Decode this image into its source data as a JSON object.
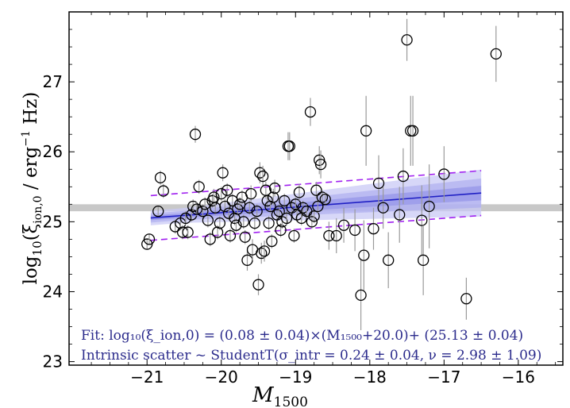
{
  "chart_data": {
    "type": "scatter",
    "xlabel": "M_1500",
    "ylabel": "log10(ξ_ion,0 / erg^-1 Hz)",
    "xlim": [
      -22.05,
      -15.4
    ],
    "ylim": [
      22.95,
      28.0
    ],
    "x_ticks": [
      -21,
      -20,
      -19,
      -18,
      -17,
      -16
    ],
    "x_tick_labels": [
      "−21",
      "−20",
      "−19",
      "−18",
      "−17",
      "−16"
    ],
    "y_ticks": [
      23,
      24,
      25,
      26,
      27
    ],
    "y_tick_labels": [
      "23",
      "24",
      "25",
      "26",
      "27"
    ],
    "reference_band": {
      "y_center": 25.2,
      "half_width": 0.05,
      "color": "#c8c8c8"
    },
    "fit": {
      "slope": 0.08,
      "intercept": 25.13,
      "x0": -20.0,
      "x_range": [
        -20.95,
        -16.5
      ],
      "line_color": "#1f1fc4",
      "band_colors": [
        "#c9c9f5",
        "#a8a8ee",
        "#8888e6"
      ],
      "scatter_color": "#a020f0",
      "scatter_offset": 0.32
    },
    "points": [
      [
        -21.0,
        24.68,
        0.08
      ],
      [
        -20.97,
        24.75,
        0.08
      ],
      [
        -20.85,
        25.15,
        0.08
      ],
      [
        -20.82,
        25.63,
        0.1
      ],
      [
        -20.78,
        25.44,
        0.1
      ],
      [
        -20.62,
        24.93,
        0.1
      ],
      [
        -20.55,
        24.98,
        0.1
      ],
      [
        -20.52,
        24.85,
        0.1
      ],
      [
        -20.48,
        25.05,
        0.1
      ],
      [
        -20.45,
        24.85,
        0.1
      ],
      [
        -20.4,
        25.1,
        0.1
      ],
      [
        -20.38,
        25.22,
        0.1
      ],
      [
        -20.35,
        26.25,
        0.12
      ],
      [
        -20.33,
        25.18,
        0.1
      ],
      [
        -20.3,
        25.5,
        0.1
      ],
      [
        -20.25,
        25.15,
        0.1
      ],
      [
        -20.22,
        25.25,
        0.1
      ],
      [
        -20.18,
        25.02,
        0.1
      ],
      [
        -20.15,
        24.75,
        0.1
      ],
      [
        -20.12,
        25.3,
        0.1
      ],
      [
        -20.1,
        25.35,
        0.12
      ],
      [
        -20.08,
        25.2,
        0.1
      ],
      [
        -20.05,
        24.85,
        0.1
      ],
      [
        -20.02,
        24.98,
        0.1
      ],
      [
        -20.0,
        25.4,
        0.1
      ],
      [
        -19.98,
        25.7,
        0.12
      ],
      [
        -19.95,
        25.22,
        0.1
      ],
      [
        -19.92,
        25.45,
        0.1
      ],
      [
        -19.9,
        25.12,
        0.1
      ],
      [
        -19.88,
        24.8,
        0.1
      ],
      [
        -19.85,
        25.3,
        0.1
      ],
      [
        -19.82,
        25.05,
        0.1
      ],
      [
        -19.8,
        24.95,
        0.1
      ],
      [
        -19.78,
        25.18,
        0.1
      ],
      [
        -19.75,
        25.25,
        0.1
      ],
      [
        -19.72,
        25.35,
        0.1
      ],
      [
        -19.7,
        25.0,
        0.1
      ],
      [
        -19.68,
        24.78,
        0.1
      ],
      [
        -19.65,
        24.45,
        0.15
      ],
      [
        -19.62,
        25.2,
        0.1
      ],
      [
        -19.6,
        25.4,
        0.12
      ],
      [
        -19.58,
        24.6,
        0.15
      ],
      [
        -19.55,
        24.98,
        0.1
      ],
      [
        -19.52,
        25.15,
        0.1
      ],
      [
        -19.5,
        24.1,
        0.15
      ],
      [
        -19.48,
        25.7,
        0.15
      ],
      [
        -19.46,
        24.55,
        0.15
      ],
      [
        -19.44,
        25.65,
        0.15
      ],
      [
        -19.42,
        24.58,
        0.15
      ],
      [
        -19.4,
        25.45,
        0.12
      ],
      [
        -19.38,
        25.3,
        0.1
      ],
      [
        -19.36,
        24.98,
        0.1
      ],
      [
        -19.34,
        25.22,
        0.1
      ],
      [
        -19.32,
        24.72,
        0.1
      ],
      [
        -19.3,
        25.35,
        0.12
      ],
      [
        -19.28,
        25.48,
        0.12
      ],
      [
        -19.25,
        25.1,
        0.1
      ],
      [
        -19.22,
        25.15,
        0.1
      ],
      [
        -19.2,
        24.88,
        0.1
      ],
      [
        -19.18,
        25.0,
        0.1
      ],
      [
        -19.15,
        25.3,
        0.1
      ],
      [
        -19.12,
        25.05,
        0.1
      ],
      [
        -19.1,
        26.08,
        0.2
      ],
      [
        -19.08,
        26.08,
        0.2
      ],
      [
        -19.05,
        25.2,
        0.1
      ],
      [
        -19.02,
        24.8,
        0.1
      ],
      [
        -19.0,
        25.25,
        0.1
      ],
      [
        -18.98,
        25.1,
        0.1
      ],
      [
        -18.95,
        25.42,
        0.12
      ],
      [
        -18.92,
        25.05,
        0.1
      ],
      [
        -18.9,
        25.2,
        0.1
      ],
      [
        -18.85,
        25.15,
        0.1
      ],
      [
        -18.8,
        26.57,
        0.2
      ],
      [
        -18.78,
        25.0,
        0.1
      ],
      [
        -18.75,
        25.08,
        0.1
      ],
      [
        -18.72,
        25.45,
        0.12
      ],
      [
        -18.7,
        25.22,
        0.1
      ],
      [
        -18.68,
        25.88,
        0.2
      ],
      [
        -18.66,
        25.82,
        0.2
      ],
      [
        -18.64,
        25.35,
        0.1
      ],
      [
        -18.6,
        25.32,
        0.1
      ],
      [
        -18.55,
        24.8,
        0.2
      ],
      [
        -18.45,
        24.8,
        0.25
      ],
      [
        -18.35,
        24.95,
        0.25
      ],
      [
        -18.2,
        24.88,
        0.3
      ],
      [
        -18.12,
        23.95,
        0.5
      ],
      [
        -18.08,
        24.52,
        0.5
      ],
      [
        -18.05,
        26.3,
        0.5
      ],
      [
        -17.95,
        24.9,
        0.3
      ],
      [
        -17.88,
        25.55,
        0.4
      ],
      [
        -17.82,
        25.2,
        0.3
      ],
      [
        -17.75,
        24.45,
        0.4
      ],
      [
        -17.6,
        25.1,
        0.4
      ],
      [
        -17.55,
        25.65,
        0.4
      ],
      [
        -17.5,
        27.6,
        0.3
      ],
      [
        -17.45,
        26.3,
        0.5
      ],
      [
        -17.42,
        26.3,
        0.5
      ],
      [
        -17.3,
        25.02,
        0.5
      ],
      [
        -17.28,
        24.45,
        0.5
      ],
      [
        -17.2,
        25.22,
        0.6
      ],
      [
        -17.0,
        25.68,
        0.4
      ],
      [
        -16.7,
        23.9,
        0.3
      ],
      [
        -16.3,
        27.4,
        0.4
      ]
    ],
    "annotations": [
      "Fit: log₁₀(ξ_ion,0) = (0.08 ± 0.04)×(M₁₅₀₀+20.0)+ (25.13 ± 0.04)",
      "Intrinsic scatter ~ StudentT(σ_intr = 0.24 ± 0.04, ν = 2.98 ± 1.09)"
    ]
  }
}
